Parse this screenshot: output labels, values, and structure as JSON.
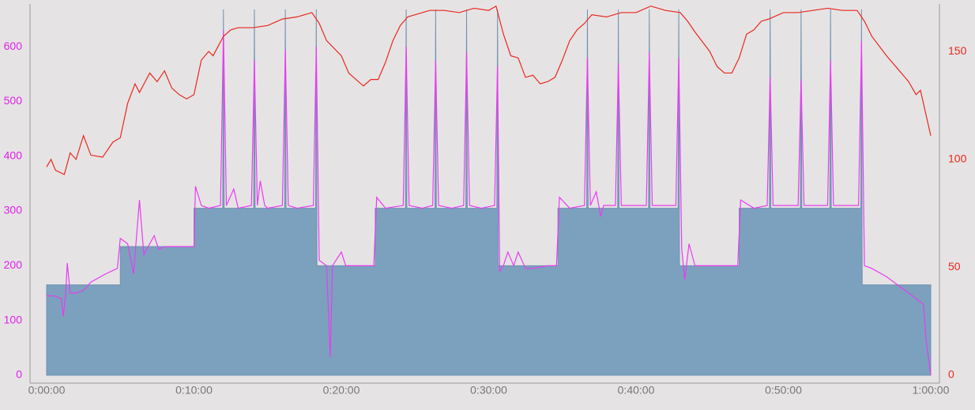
{
  "chart_data": {
    "type": "line",
    "xlim": [
      0,
      60
    ],
    "ylim": [
      0,
      678
    ],
    "y2lim": [
      0,
      172
    ],
    "xticks": [
      {
        "value": 0,
        "label": "0:00:00"
      },
      {
        "value": 10,
        "label": "0:10:00"
      },
      {
        "value": 20,
        "label": "0:20:00"
      },
      {
        "value": 30,
        "label": "0:30:00"
      },
      {
        "value": 40,
        "label": "0:40:00"
      },
      {
        "value": 50,
        "label": "0:50:00"
      },
      {
        "value": 60,
        "label": "1:00:00"
      }
    ],
    "yticks": [
      0,
      100,
      200,
      300,
      400,
      500,
      600
    ],
    "y2ticks": [
      0,
      50,
      100,
      150
    ],
    "ytick_color": "#e020e8",
    "y2tick_color": "#e8281c",
    "series": [
      {
        "type": "area",
        "color": "#7ba1be",
        "x": [
          0,
          5,
          5,
          10,
          10,
          11.95,
          12,
          12.05,
          14.05,
          14.1,
          14.15,
          16.15,
          16.2,
          16.25,
          18.25,
          18.3,
          18.35,
          22.3,
          22.3,
          24.35,
          24.4,
          24.45,
          26.35,
          26.4,
          26.45,
          28.45,
          28.5,
          28.55,
          30.55,
          30.6,
          30.65,
          34.7,
          34.7,
          36.65,
          36.7,
          36.75,
          38.75,
          38.8,
          38.85,
          40.85,
          40.9,
          40.95,
          42.85,
          42.9,
          42.95,
          47,
          47,
          49.05,
          49.1,
          49.15,
          51.15,
          51.2,
          51.25,
          53.15,
          53.2,
          53.25,
          55.25,
          55.3,
          55.35,
          60
        ],
        "values": [
          165,
          165,
          235,
          235,
          305,
          305,
          668,
          305,
          305,
          668,
          305,
          305,
          668,
          305,
          305,
          668,
          200,
          200,
          305,
          305,
          668,
          305,
          305,
          668,
          305,
          305,
          668,
          305,
          305,
          668,
          200,
          200,
          305,
          305,
          668,
          305,
          305,
          668,
          305,
          305,
          668,
          305,
          305,
          668,
          200,
          200,
          305,
          305,
          668,
          305,
          305,
          668,
          305,
          305,
          668,
          305,
          305,
          668,
          165,
          165
        ]
      },
      {
        "type": "line",
        "color": "#e83cf0",
        "x": [
          0,
          0.5,
          1,
          1.13,
          1.3,
          1.4,
          1.6,
          2,
          2.5,
          3,
          4,
          4.8,
          5,
          5.5,
          5.9,
          6.3,
          6.6,
          7,
          7.3,
          7.6,
          8,
          9,
          10,
          10.1,
          10.5,
          11,
          11.8,
          12,
          12.2,
          12.7,
          13,
          13.9,
          14.1,
          14.3,
          14.5,
          14.8,
          15,
          16,
          16.2,
          16.4,
          17,
          18.1,
          18.3,
          18.5,
          19,
          19.25,
          19.4,
          20,
          20.3,
          21,
          22.2,
          22.4,
          23,
          24.2,
          24.4,
          24.6,
          25.5,
          26.2,
          26.4,
          26.6,
          27.5,
          28.3,
          28.5,
          28.7,
          29.5,
          30.4,
          30.6,
          30.75,
          31,
          31.3,
          31.7,
          32,
          32.5,
          33,
          34,
          34.6,
          34.8,
          35.5,
          36.5,
          36.7,
          36.9,
          37.3,
          37.6,
          37.8,
          38.6,
          38.8,
          39,
          40.7,
          40.9,
          41.1,
          42.7,
          42.9,
          43.1,
          43.3,
          43.6,
          44,
          45,
          46.9,
          47.1,
          48,
          48.9,
          49.1,
          49.3,
          51,
          51.2,
          51.4,
          53,
          53.2,
          53.4,
          55.1,
          55.3,
          55.5,
          56,
          57,
          58,
          59,
          59.5,
          59.7,
          60
        ],
        "values": [
          145,
          145,
          140,
          108,
          150,
          205,
          150,
          150,
          155,
          170,
          185,
          195,
          250,
          240,
          185,
          320,
          220,
          240,
          255,
          230,
          235,
          235,
          235,
          345,
          310,
          305,
          310,
          630,
          310,
          340,
          305,
          310,
          575,
          310,
          355,
          310,
          305,
          310,
          595,
          310,
          305,
          310,
          600,
          210,
          200,
          33,
          200,
          225,
          200,
          200,
          200,
          325,
          305,
          310,
          600,
          310,
          305,
          310,
          575,
          310,
          305,
          310,
          590,
          310,
          305,
          310,
          565,
          190,
          200,
          225,
          200,
          225,
          195,
          195,
          200,
          200,
          325,
          305,
          310,
          580,
          310,
          335,
          290,
          310,
          310,
          570,
          310,
          310,
          590,
          310,
          310,
          580,
          230,
          175,
          240,
          200,
          200,
          200,
          320,
          305,
          310,
          545,
          310,
          310,
          540,
          310,
          310,
          575,
          310,
          310,
          610,
          200,
          195,
          180,
          160,
          140,
          130,
          60,
          0
        ]
      },
      {
        "type": "line",
        "axis": "y2",
        "color": "#e8281c",
        "x": [
          0,
          0.3,
          0.6,
          1.2,
          1.6,
          2,
          2.5,
          3,
          3.8,
          4.5,
          5,
          5.5,
          6,
          6.3,
          7,
          7.5,
          8,
          8.5,
          9,
          9.5,
          10,
          10.5,
          11,
          11.3,
          12,
          12.5,
          13,
          14,
          15,
          16,
          17,
          18,
          18.5,
          19,
          20,
          20.5,
          21,
          21.5,
          22,
          22.5,
          23,
          23.5,
          24,
          24.5,
          25,
          26,
          27,
          28,
          29,
          30,
          30.5,
          31,
          31.5,
          32,
          32.5,
          33,
          33.5,
          34,
          34.5,
          35,
          35.5,
          36,
          36.5,
          37,
          38,
          39,
          40,
          41,
          42,
          43,
          43.5,
          44,
          45,
          45.5,
          46,
          46.5,
          47,
          47.5,
          48,
          48.5,
          49,
          50,
          51,
          52,
          53,
          54,
          55,
          55.5,
          56,
          57,
          58,
          58.5,
          59,
          59.3,
          59.8,
          60
        ],
        "values": [
          96.5,
          100,
          95,
          93,
          103,
          100,
          111,
          102,
          101,
          108,
          110,
          126,
          135,
          131,
          140,
          136,
          141,
          133,
          130,
          128,
          130,
          146,
          150,
          148,
          157,
          160,
          161,
          161,
          162,
          165,
          166,
          168,
          163,
          155,
          148,
          140,
          137,
          134,
          137,
          137,
          145,
          155,
          162,
          166,
          167,
          169,
          169,
          168,
          170,
          169,
          171,
          158,
          148,
          147,
          138,
          139,
          135,
          136,
          138,
          146,
          155,
          160,
          163,
          167,
          166,
          168,
          168,
          171,
          169,
          168,
          164,
          159,
          150,
          143,
          140,
          140,
          147,
          158,
          160,
          164,
          165,
          168,
          168,
          169,
          170,
          169,
          169,
          164,
          157,
          148,
          140,
          136,
          130,
          132,
          117,
          111
        ]
      }
    ]
  }
}
